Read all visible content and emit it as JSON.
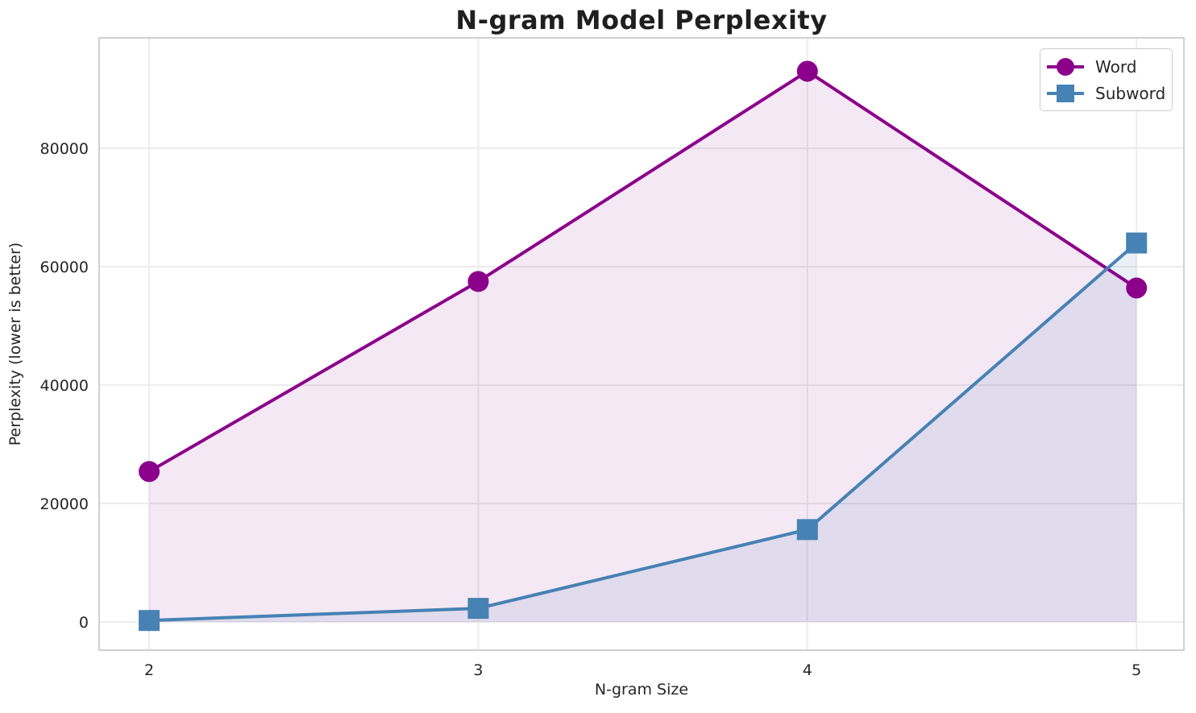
{
  "chart_data": {
    "type": "line",
    "title": "N-gram Model Perplexity",
    "xlabel": "N-gram Size",
    "ylabel": "Perplexity (lower is better)",
    "x": [
      2,
      3,
      4,
      5
    ],
    "series": [
      {
        "name": "Word",
        "values": [
          25400,
          57500,
          93000,
          56400
        ],
        "color": "#8B008B",
        "marker": "circle",
        "fill": "rgba(139,0,139,0.09)"
      },
      {
        "name": "Subword",
        "values": [
          250,
          2300,
          15600,
          64000
        ],
        "color": "#4682B4",
        "marker": "square",
        "fill": "rgba(70,130,180,0.12)"
      }
    ],
    "xticks": [
      2,
      3,
      4,
      5
    ],
    "yticks": [
      0,
      20000,
      40000,
      60000,
      80000
    ],
    "xlim": [
      1.848,
      5.144
    ],
    "ylim": [
      -4762,
      98639
    ],
    "grid": true,
    "area_fill_baseline": 0,
    "legend_position": "upper right"
  },
  "legend": {
    "items": [
      {
        "label": "Word"
      },
      {
        "label": "Subword"
      }
    ]
  },
  "colors": {
    "text": "#262626",
    "grid": "#ececec",
    "spine": "#d0d0d0",
    "background": "#ffffff"
  }
}
